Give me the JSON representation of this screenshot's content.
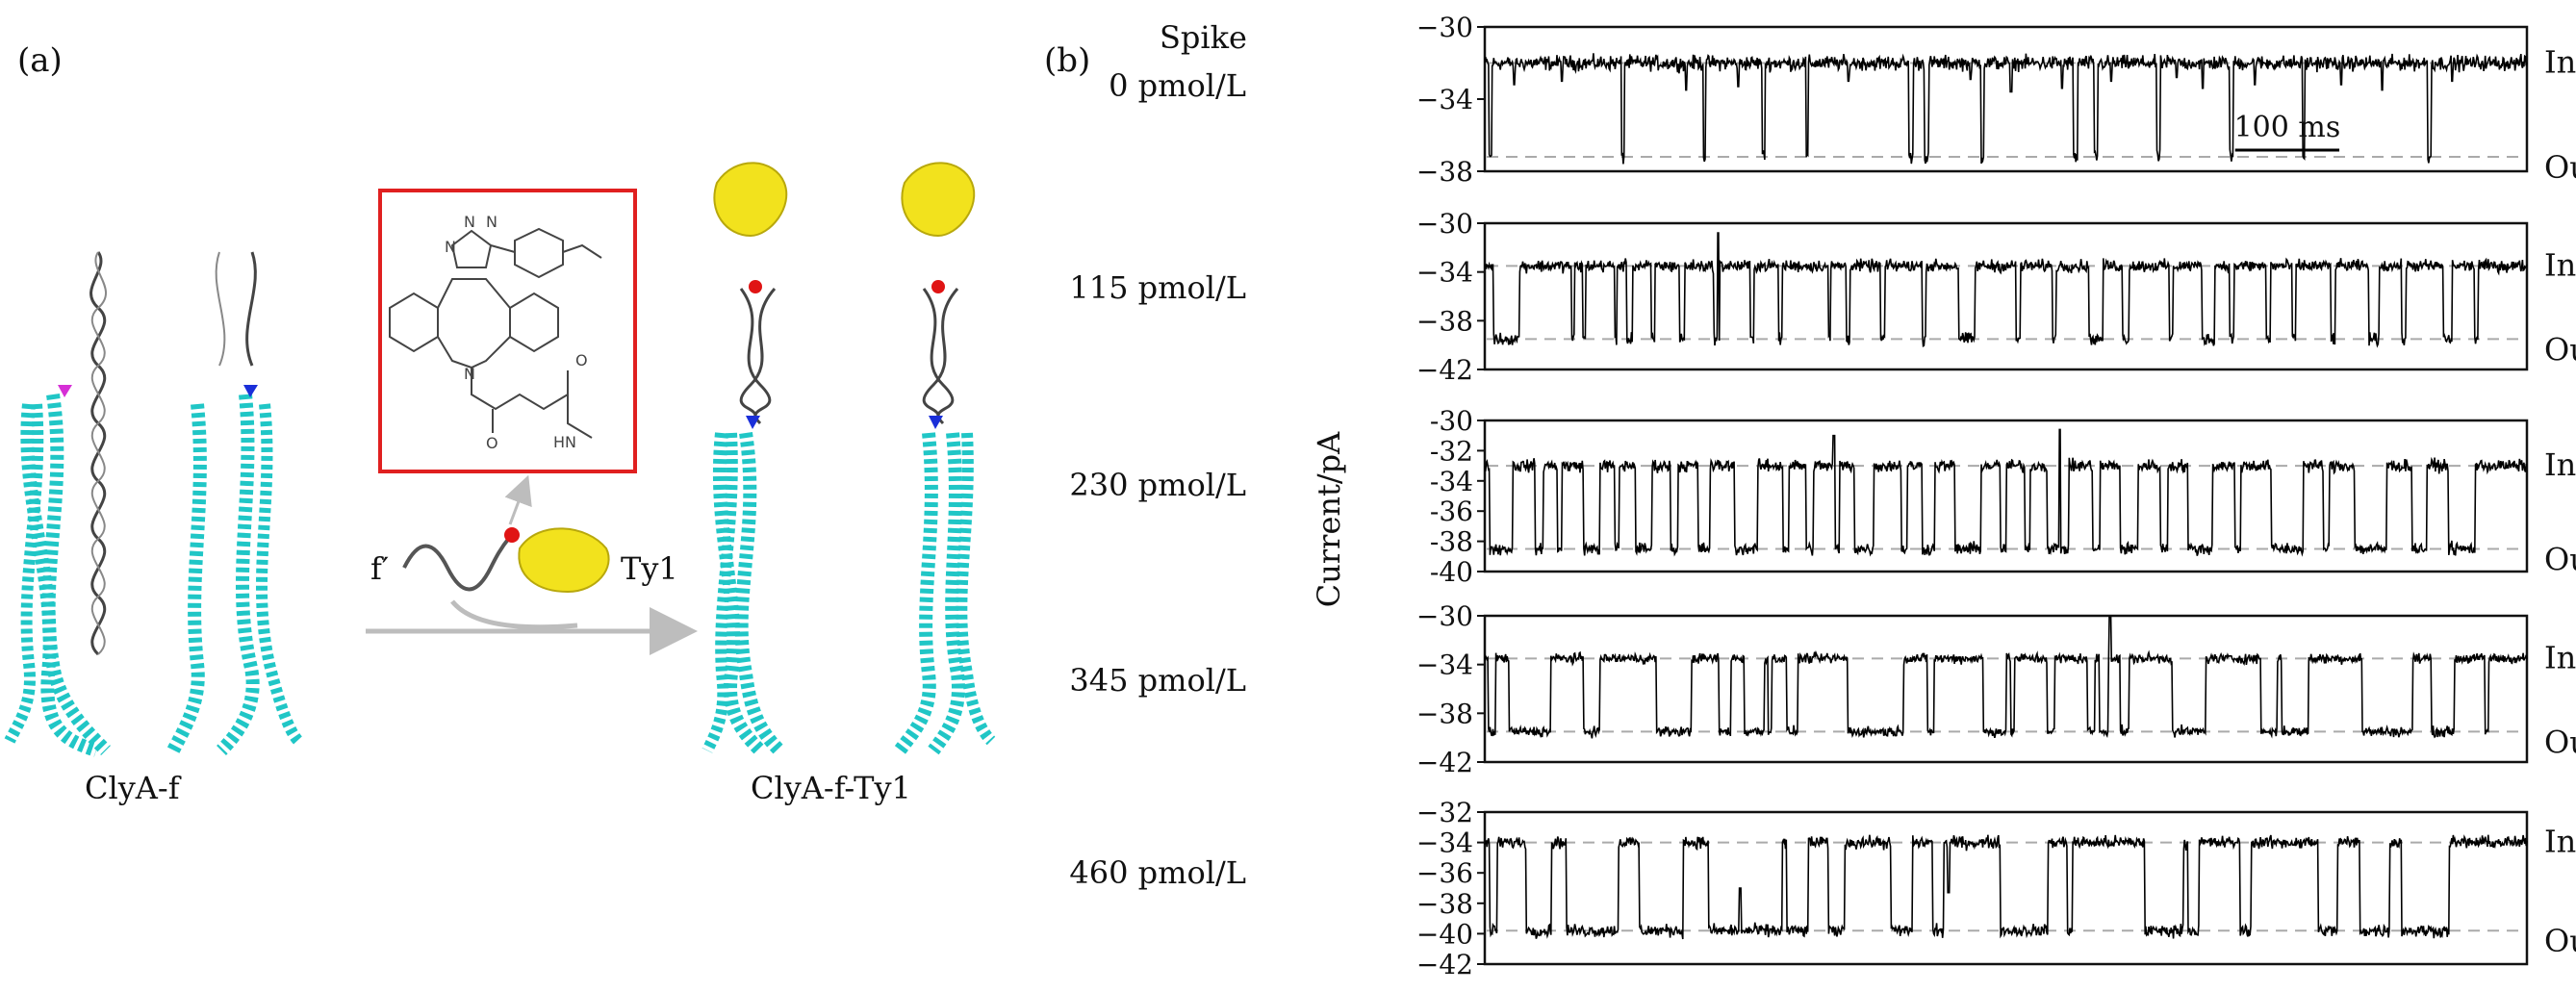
{
  "panel_a": {
    "label": "(a)",
    "left_construct_label": "ClyA-f",
    "right_construct_label": "ClyA-f-Ty1",
    "linker_label": "f′",
    "nanobody_label": "Ty1",
    "structure_atom_labels": [
      "N",
      "N",
      "N",
      "N",
      "O",
      "O",
      "HN"
    ],
    "colors": {
      "helix": "#20c6c6",
      "nanobody": "#f2e21d",
      "dna": "#444444",
      "box": "#e02020",
      "arrow": "#bdbdbd",
      "tag_red": "#e01414",
      "tag_blue": "#1a2fd9",
      "tag_magenta": "#d62fd6"
    }
  },
  "panel_b": {
    "label": "(b)",
    "spike_header": "Spike",
    "ylabel": "Current/pA",
    "scale_bar_label": "100 ms",
    "state_in_label": "In",
    "state_out_label": "Out"
  },
  "chart_data": [
    {
      "type": "line",
      "title": "",
      "row_label": "0 pmol/L",
      "xlabel": "",
      "ylabel": "Current/pA",
      "ylim": [
        -38,
        -30
      ],
      "yticks": [
        -30,
        -34,
        -38
      ],
      "ytick_labels": [
        "−30",
        "−34",
        "−38"
      ],
      "levels": {
        "In": -32,
        "Out": -37.2
      },
      "series": [
        {
          "open_level": -32,
          "blocked_level": -37.2,
          "noise": 0.45,
          "pulses_ms": [
            [
              4,
              7
            ],
            [
              131,
              134
            ],
            [
              210,
              212
            ],
            [
              266,
              269
            ],
            [
              308,
              310
            ],
            [
              407,
              411
            ],
            [
              422,
              426
            ],
            [
              476,
              479
            ],
            [
              565,
              569
            ],
            [
              585,
              588
            ],
            [
              645,
              648
            ],
            [
              715,
              718
            ],
            [
              785,
              787
            ],
            [
              905,
              908
            ]
          ],
          "spikes_ms": [
            [
              28,
              -33.2
            ],
            [
              74,
              -33
            ],
            [
              193,
              -33.5
            ],
            [
              243,
              -33.3
            ],
            [
              349,
              -33.0
            ],
            [
              466,
              -32.9
            ],
            [
              505,
              -33.6
            ],
            [
              554,
              -33.4
            ],
            [
              601,
              -33.0
            ],
            [
              664,
              -32.8
            ],
            [
              689,
              -33.4
            ],
            [
              739,
              -33.2
            ],
            [
              822,
              -33.2
            ],
            [
              861,
              -33.5
            ],
            [
              928,
              -33.0
            ]
          ]
        }
      ]
    },
    {
      "type": "line",
      "title": "",
      "row_label": "115 pmol/L",
      "xlabel": "",
      "ylabel": "Current/pA",
      "ylim": [
        -42,
        -30
      ],
      "yticks": [
        -30,
        -34,
        -38,
        -42
      ],
      "ytick_labels": [
        "−30",
        "−34",
        "−38",
        "−42"
      ],
      "levels": {
        "In": -33.5,
        "Out": -39.5
      },
      "series": [
        {
          "open_level": -33.5,
          "blocked_level": -39.5,
          "noise": 0.55,
          "pulses_ms": [
            [
              8,
              33
            ],
            [
              83,
              86
            ],
            [
              94,
              97
            ],
            [
              125,
              127
            ],
            [
              136,
              142
            ],
            [
              160,
              163
            ],
            [
              187,
              192
            ],
            [
              220,
              225
            ],
            [
              255,
              258
            ],
            [
              282,
              285
            ],
            [
              330,
              332
            ],
            [
              347,
              350
            ],
            [
              380,
              384
            ],
            [
              420,
              423
            ],
            [
              455,
              470
            ],
            [
              510,
              514
            ],
            [
              545,
              548
            ],
            [
              580,
              593
            ],
            [
              612,
              618
            ],
            [
              657,
              660
            ],
            [
              688,
              700
            ],
            [
              715,
              719
            ],
            [
              750,
              754
            ],
            [
              775,
              778
            ],
            [
              812,
              816
            ],
            [
              848,
              858
            ],
            [
              880,
              884
            ],
            [
              920,
              928
            ],
            [
              950,
              953
            ]
          ],
          "spikes_ms": [
            [
              224,
              -30.8
            ]
          ]
        }
      ]
    },
    {
      "type": "line",
      "title": "",
      "row_label": "230 pmol/L",
      "xlabel": "",
      "ylabel": "Current/pA",
      "ylim": [
        -40,
        -30
      ],
      "yticks": [
        -30,
        -32,
        -34,
        -36,
        -38,
        -40
      ],
      "ytick_labels": [
        "-30",
        "-32",
        "-34",
        "-36",
        "-38",
        "-40"
      ],
      "levels": {
        "In": -33,
        "Out": -38.5
      },
      "series": [
        {
          "open_level": -33,
          "blocked_level": -38.5,
          "noise": 0.45,
          "pulses_ms": [
            [
              5,
              27
            ],
            [
              48,
              56
            ],
            [
              70,
              74
            ],
            [
              95,
              110
            ],
            [
              125,
              129
            ],
            [
              145,
              160
            ],
            [
              178,
              185
            ],
            [
              205,
              216
            ],
            [
              240,
              262
            ],
            [
              286,
              292
            ],
            [
              308,
              315
            ],
            [
              335,
              340
            ],
            [
              355,
              373
            ],
            [
              400,
              405
            ],
            [
              420,
              432
            ],
            [
              451,
              476
            ],
            [
              495,
              500
            ],
            [
              518,
              523
            ],
            [
              540,
              560
            ],
            [
              583,
              590
            ],
            [
              610,
              627
            ],
            [
              648,
              655
            ],
            [
              675,
              698
            ],
            [
              720,
              725
            ],
            [
              755,
              785
            ],
            [
              805,
              810
            ],
            [
              835,
              865
            ],
            [
              890,
              904
            ],
            [
              925,
              950
            ]
          ],
          "spikes_ms": [
            [
              335,
              -31.0
            ],
            [
              552,
              -30.6
            ]
          ]
        }
      ]
    },
    {
      "type": "line",
      "title": "",
      "row_label": "345 pmol/L",
      "xlabel": "",
      "ylabel": "Current/pA",
      "ylim": [
        -42,
        -30
      ],
      "yticks": [
        -30,
        -34,
        -38,
        -42
      ],
      "ytick_labels": [
        "−30",
        "−34",
        "−38",
        "−42"
      ],
      "levels": {
        "In": -33.5,
        "Out": -39.5
      },
      "series": [
        {
          "open_level": -33.5,
          "blocked_level": -39.5,
          "noise": 0.45,
          "pulses_ms": [
            [
              3,
              10
            ],
            [
              23,
              63
            ],
            [
              95,
              110
            ],
            [
              165,
              198
            ],
            [
              225,
              236
            ],
            [
              249,
              268
            ],
            [
              272,
              275
            ],
            [
              290,
              300
            ],
            [
              348,
              402
            ],
            [
              425,
              431
            ],
            [
              478,
              500
            ],
            [
              505,
              508
            ],
            [
              540,
              547
            ],
            [
              578,
              585
            ],
            [
              590,
              598
            ],
            [
              610,
              618
            ],
            [
              660,
              692
            ],
            [
              745,
              760
            ],
            [
              765,
              790
            ],
            [
              842,
              890
            ],
            [
              908,
              930
            ],
            [
              960,
              963
            ]
          ],
          "spikes_ms": [
            [
              600,
              -30.1
            ]
          ]
        }
      ]
    },
    {
      "type": "line",
      "title": "",
      "row_label": "460 pmol/L",
      "xlabel": "",
      "ylabel": "Current/pA",
      "ylim": [
        -42,
        -32
      ],
      "yticks": [
        -32,
        -34,
        -36,
        -38,
        -40,
        -42
      ],
      "ytick_labels": [
        "−32",
        "−34",
        "−36",
        "−38",
        "−40",
        "−42"
      ],
      "levels": {
        "In": -34,
        "Out": -39.8
      },
      "series": [
        {
          "open_level": -34,
          "blocked_level": -39.8,
          "noise": 0.45,
          "pulses_ms": [
            [
              5,
              12
            ],
            [
              40,
              64
            ],
            [
              78,
              128
            ],
            [
              148,
              190
            ],
            [
              215,
              285
            ],
            [
              290,
              310
            ],
            [
              330,
              345
            ],
            [
              390,
              410
            ],
            [
              430,
              440
            ],
            [
              495,
              540
            ],
            [
              559,
              564
            ],
            [
              633,
              670
            ],
            [
              675,
              685
            ],
            [
              725,
              735
            ],
            [
              800,
              818
            ],
            [
              840,
              868
            ],
            [
              880,
              925
            ]
          ],
          "spikes_ms": [
            [
              245,
              -37.0
            ],
            [
              445,
              -37.3
            ]
          ]
        }
      ]
    }
  ]
}
